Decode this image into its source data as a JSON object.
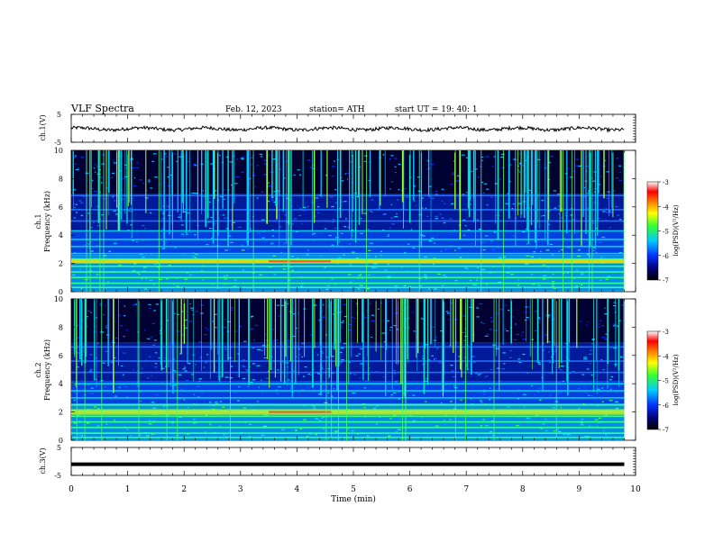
{
  "header": {
    "title": "VLF  Spectra",
    "date": "Feb. 12, 2023",
    "station": "station= ATH",
    "start": "start  UT  =   19: 40: 1"
  },
  "chart_data": [
    {
      "type": "line",
      "name": "ch1-waveform",
      "ylabel": "ch.1(V)",
      "ylim": [
        -5,
        5
      ],
      "yticks": [
        "5",
        "-5"
      ],
      "xlim": [
        0,
        10
      ],
      "level": -0.2,
      "grid": false
    },
    {
      "type": "heatmap",
      "name": "ch1-spectrogram",
      "ylabel_line1": "ch.1",
      "ylabel_line2": "Frequency (kHz)",
      "ylim": [
        0,
        10
      ],
      "yticks": [
        "0",
        "2",
        "4",
        "6",
        "8",
        "10"
      ],
      "xlim": [
        0,
        9.8
      ],
      "colorbar": {
        "label": "log(PSD)(V²/Hz)",
        "range": [
          -7,
          -3
        ],
        "ticks": [
          "-3",
          "-4",
          "-5",
          "-6",
          "-7"
        ]
      },
      "bands_khz": [
        0.3,
        0.6,
        1.0,
        1.4,
        1.8,
        2.1,
        2.3,
        2.7,
        3.2,
        3.7,
        4.3,
        5.0,
        5.8,
        6.8
      ],
      "strong_band_khz": [
        2.0,
        2.3
      ]
    },
    {
      "type": "heatmap",
      "name": "ch2-spectrogram",
      "ylabel_line1": "ch.2",
      "ylabel_line2": "Frequency (kHz)",
      "ylim": [
        0,
        10
      ],
      "yticks": [
        "0",
        "2",
        "4",
        "6",
        "8",
        "10"
      ],
      "xlim": [
        0,
        9.8
      ],
      "colorbar": {
        "label": "log(PSD)(V²/Hz)",
        "range": [
          -7,
          -3
        ],
        "ticks": [
          "-3",
          "-4",
          "-5",
          "-6",
          "-7"
        ]
      },
      "bands_khz": [
        0.2,
        0.5,
        0.9,
        1.3,
        1.7,
        2.0,
        2.5,
        3.0,
        3.5,
        4.0,
        4.8,
        5.6,
        6.6
      ],
      "strong_band_khz": [
        1.8,
        2.2
      ]
    },
    {
      "type": "line",
      "name": "ch3-waveform",
      "ylabel": "ch.3(V)",
      "ylim": [
        -5,
        5
      ],
      "yticks": [
        "5",
        "-5"
      ],
      "xlim": [
        0,
        10
      ],
      "level": -1.0,
      "grid": false
    }
  ],
  "xaxis": {
    "label": "Time  (min)",
    "range": [
      0,
      10
    ],
    "ticks": [
      "0",
      "1",
      "2",
      "3",
      "4",
      "5",
      "6",
      "7",
      "8",
      "9",
      "10"
    ]
  }
}
